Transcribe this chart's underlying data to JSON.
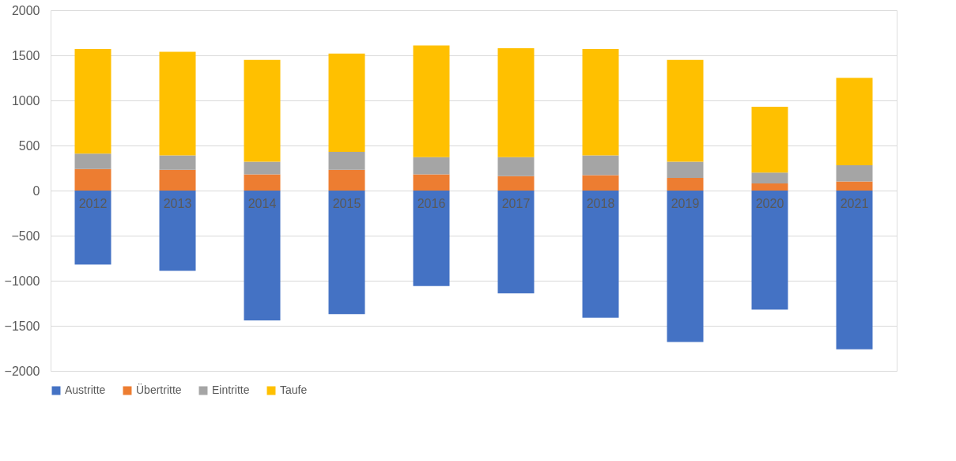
{
  "chart_data": {
    "type": "bar",
    "stacked": true,
    "categories": [
      "2012",
      "2013",
      "2014",
      "2015",
      "2016",
      "2017",
      "2018",
      "2019",
      "2020",
      "2021"
    ],
    "series": [
      {
        "name": "Austritte",
        "color": "#4472c4",
        "values": [
          -820,
          -890,
          -1440,
          -1370,
          -1060,
          -1140,
          -1410,
          -1680,
          -1320,
          -1760
        ]
      },
      {
        "name": "Übertritte",
        "color": "#ed7d31",
        "values": [
          240,
          230,
          180,
          230,
          180,
          160,
          170,
          140,
          80,
          100
        ]
      },
      {
        "name": "Eintritte",
        "color": "#a5a5a5",
        "values": [
          170,
          160,
          140,
          200,
          190,
          210,
          220,
          180,
          120,
          180
        ]
      },
      {
        "name": "Taufe",
        "color": "#ffc000",
        "values": [
          1160,
          1150,
          1130,
          1090,
          1240,
          1210,
          1180,
          1130,
          730,
          970
        ]
      }
    ],
    "ylim": [
      -2000,
      2000
    ],
    "yticks": [
      -2000,
      -1500,
      -1000,
      -500,
      0,
      500,
      1000,
      1500,
      2000
    ],
    "grid": "y",
    "legend": "bottom"
  }
}
